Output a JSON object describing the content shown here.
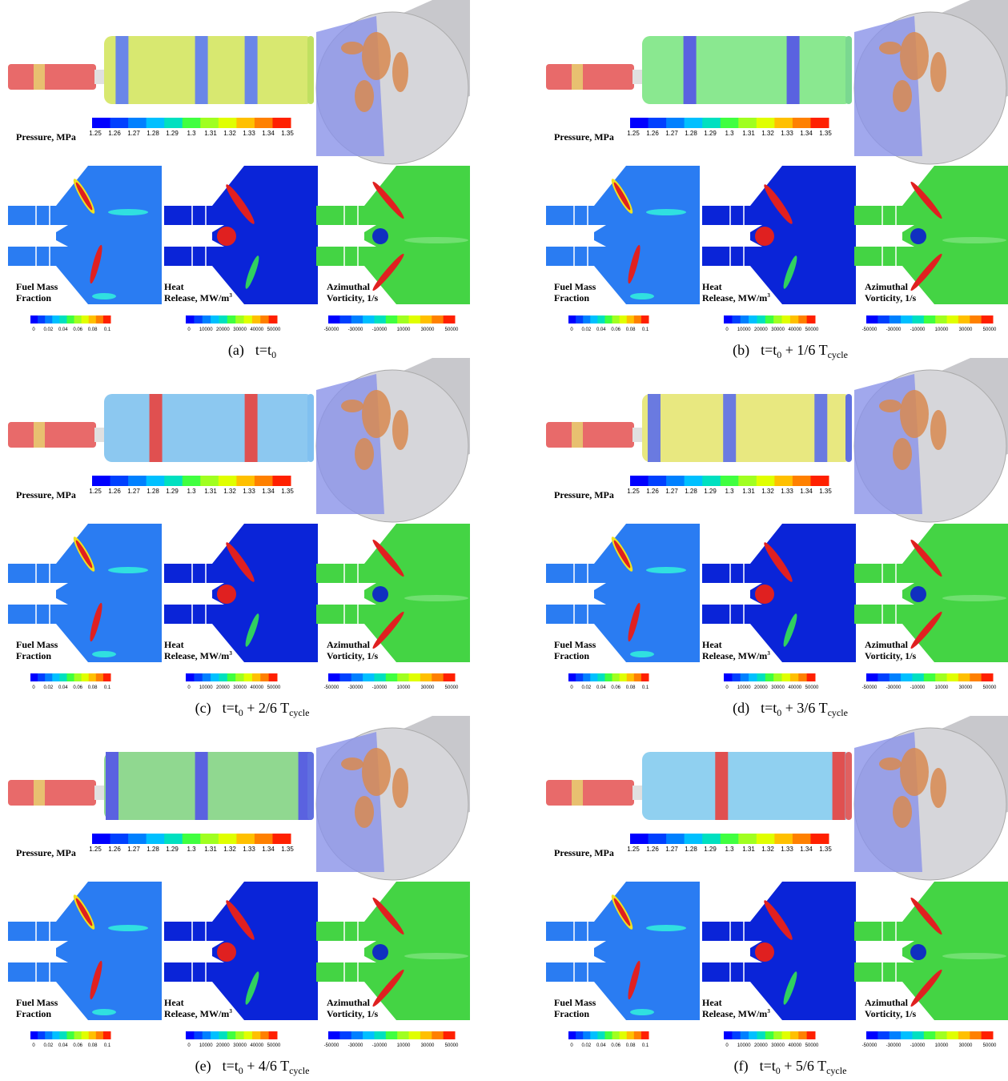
{
  "colorbars": {
    "pressure": {
      "label": "Pressure, MPa",
      "ticks": [
        "1.25",
        "1.26",
        "1.27",
        "1.28",
        "1.29",
        "1.3",
        "1.31",
        "1.32",
        "1.33",
        "1.34",
        "1.35"
      ]
    },
    "fuel": {
      "label_lines": [
        "Fuel Mass",
        "Fraction"
      ],
      "ticks": [
        "0",
        "0.02",
        "0.04",
        "0.06",
        "0.08",
        "0.1"
      ]
    },
    "heat": {
      "label_lines": [
        "Heat",
        "Release, MW/m"
      ],
      "label_sup": "3",
      "ticks": [
        "0",
        "10000",
        "20000",
        "30000",
        "40000",
        "50000"
      ]
    },
    "vorticity": {
      "label_lines": [
        "Azimuthal",
        "Vorticity, 1/s"
      ],
      "ticks": [
        "-50000",
        "-30000",
        "-10000",
        "10000",
        "30000",
        "50000"
      ]
    }
  },
  "panels": [
    {
      "letter": "(a)",
      "t": "t=t",
      "t_sub": "0"
    },
    {
      "letter": "(b)",
      "t": "t=t",
      "t_sub": "0",
      "offset": " + 1/6 T",
      "offset_sub": "cycle"
    },
    {
      "letter": "(c)",
      "t": "t=t",
      "t_sub": "0",
      "offset": " + 2/6 T",
      "offset_sub": "cycle"
    },
    {
      "letter": "(d)",
      "t": "t=t",
      "t_sub": "0",
      "offset": " + 3/6 T",
      "offset_sub": "cycle"
    },
    {
      "letter": "(e)",
      "t": "t=t",
      "t_sub": "0",
      "offset": " + 4/6 T",
      "offset_sub": "cycle"
    },
    {
      "letter": "(f)",
      "t": "t=t",
      "t_sub": "0",
      "offset": " + 5/6 T",
      "offset_sub": "cycle"
    }
  ]
}
